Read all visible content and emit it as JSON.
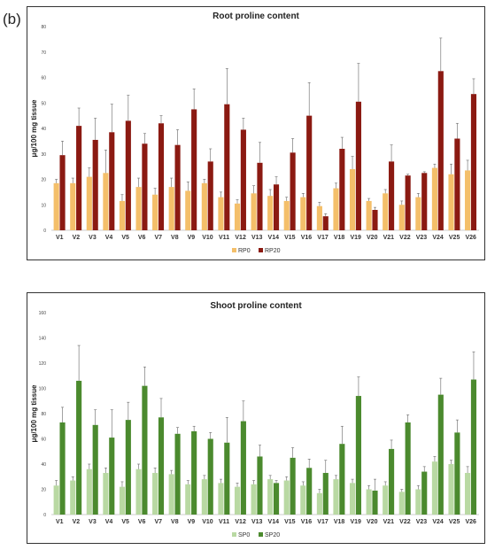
{
  "panel_label": "(b)",
  "chart_data": [
    {
      "type": "bar",
      "title": "Root proline content",
      "ylabel": "μg/100 mg tissue",
      "xlabel": "",
      "ylim": [
        0,
        80
      ],
      "yticks": [
        0,
        10,
        20,
        30,
        40,
        50,
        60,
        70,
        80
      ],
      "categories": [
        "V1",
        "V2",
        "V3",
        "V4",
        "V5",
        "V6",
        "V7",
        "V8",
        "V9",
        "V10",
        "V11",
        "V12",
        "V13",
        "V14",
        "V15",
        "V16",
        "V17",
        "V18",
        "V19",
        "V20",
        "V21",
        "V22",
        "V23",
        "V24",
        "V25",
        "V26"
      ],
      "legend": "bottom",
      "series": [
        {
          "name": "RP0",
          "color": "#F4BF6A",
          "values": [
            18.5,
            18.5,
            21,
            22.5,
            11.5,
            17,
            14,
            17,
            15.5,
            18.5,
            13,
            10.5,
            14.5,
            13.5,
            11.5,
            13,
            9.5,
            16.5,
            24,
            11.5,
            14.5,
            10,
            13,
            24.5,
            22,
            23.5
          ],
          "errors": [
            1.5,
            2,
            3.5,
            9,
            2.5,
            3.5,
            2.5,
            3.5,
            3.5,
            1.5,
            2,
            1.5,
            3,
            2.5,
            1.5,
            1.5,
            1.5,
            2,
            5,
            1,
            1.5,
            1.5,
            1.5,
            1.5,
            4,
            4
          ]
        },
        {
          "name": "RP20",
          "color": "#8B1A12",
          "values": [
            29.5,
            41,
            35.5,
            38.5,
            43,
            34,
            42,
            33.5,
            47.5,
            27,
            49.5,
            39.5,
            26.5,
            18,
            30.5,
            45,
            5.5,
            32,
            50.5,
            8,
            27,
            21.5,
            22.5,
            62.5,
            36,
            53.5
          ],
          "errors": [
            5.5,
            7,
            8.5,
            11,
            10,
            4,
            3,
            6,
            8,
            5,
            14,
            4.5,
            8,
            3,
            5.5,
            13,
            1,
            4.5,
            15,
            1,
            6.5,
            0.5,
            0.5,
            13,
            6,
            6
          ]
        }
      ]
    },
    {
      "type": "bar",
      "title": "Shoot proline content",
      "ylabel": "μg/100 mg tissue",
      "xlabel": "",
      "ylim": [
        0,
        160
      ],
      "yticks": [
        0,
        20,
        40,
        60,
        80,
        100,
        120,
        140,
        160
      ],
      "categories": [
        "V1",
        "V2",
        "V3",
        "V4",
        "V5",
        "V6",
        "V7",
        "V8",
        "V9",
        "V10",
        "V11",
        "V12",
        "V13",
        "V14",
        "V15",
        "V16",
        "V17",
        "V18",
        "V19",
        "V20",
        "V21",
        "V22",
        "V23",
        "V24",
        "V25",
        "V26"
      ],
      "legend": "bottom",
      "series": [
        {
          "name": "SP0",
          "color": "#B9D9A3",
          "values": [
            23,
            27,
            36,
            33,
            22,
            36,
            33,
            32,
            24,
            28,
            25,
            22,
            24,
            28,
            27,
            23,
            17,
            28,
            25,
            20,
            23,
            18,
            20,
            42,
            40,
            33
          ],
          "errors": [
            4,
            3,
            4,
            4,
            4,
            4,
            4,
            3,
            3,
            3,
            3,
            3,
            3,
            3,
            3,
            3,
            3,
            3,
            3,
            3,
            3,
            2,
            3,
            4,
            3,
            5
          ]
        },
        {
          "name": "SP20",
          "color": "#4B8A2E",
          "values": [
            73,
            106,
            71,
            61,
            75,
            102,
            77,
            64,
            66,
            60,
            57,
            74,
            46,
            25,
            45,
            37,
            33,
            56,
            94,
            19,
            52,
            73,
            34,
            95,
            65,
            107
          ],
          "errors": [
            12,
            28,
            12,
            22,
            14,
            15,
            15,
            5,
            4,
            5,
            20,
            16,
            9,
            2,
            8,
            7,
            10,
            14,
            15,
            9,
            7,
            6,
            4,
            13,
            10,
            22
          ]
        }
      ]
    }
  ]
}
